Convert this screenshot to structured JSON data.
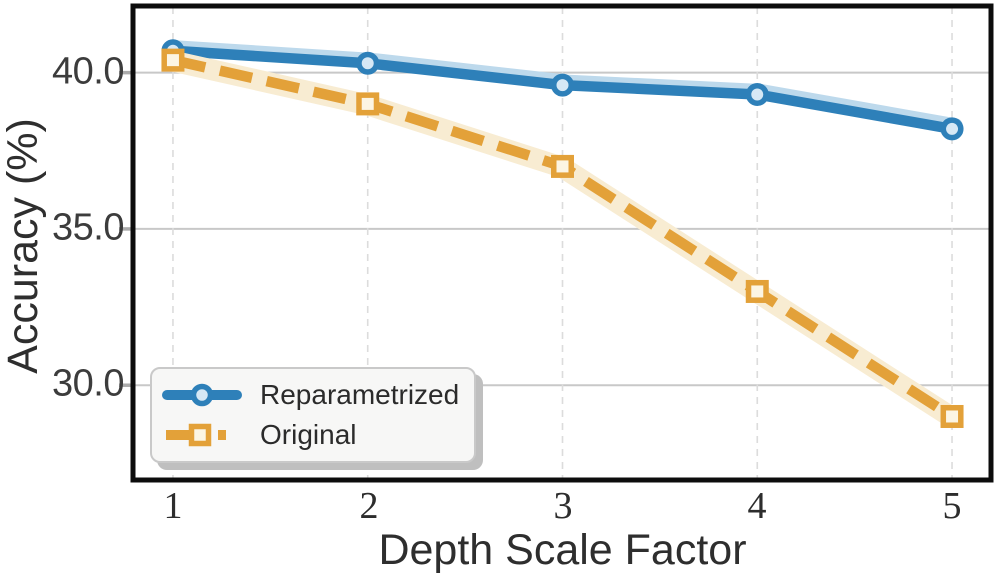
{
  "chart_data": {
    "type": "line",
    "xlabel": "Depth Scale Factor",
    "ylabel": "Accuracy (%)",
    "x": [
      1,
      2,
      3,
      4,
      5
    ],
    "series": [
      {
        "name": "Reparametrized",
        "values": [
          40.7,
          40.3,
          39.6,
          39.3,
          38.2
        ],
        "color": "#2e80b9",
        "glow_color": "#bdd9ec",
        "marker": "circle",
        "marker_fill": "#d6e8f5",
        "line_style": "solid"
      },
      {
        "name": "Original",
        "values": [
          40.4,
          39.0,
          37.0,
          33.0,
          29.0
        ],
        "color": "#e3a139",
        "glow_color": "#f8ecd2",
        "marker": "square",
        "marker_fill": "#fcf5e3",
        "line_style": "dashed"
      }
    ],
    "xtick_labels": [
      "1",
      "2",
      "3",
      "4",
      "5"
    ],
    "xtick_values": [
      1,
      2,
      3,
      4,
      5
    ],
    "ytick_labels": [
      "30.0",
      "35.0",
      "40.0"
    ],
    "ytick_values": [
      30,
      35,
      40
    ],
    "xlim": [
      0.8,
      5.2
    ],
    "ylim": [
      27.0,
      42.1
    ],
    "grid": {
      "horizontal": "solid",
      "vertical": "dashed"
    },
    "legend": {
      "position": "lower left"
    },
    "colors": {
      "frame": "#0c0c0c",
      "grid_h": "#c8c8c8",
      "grid_v": "#dcdcdc",
      "tick": "#ababab",
      "background": "#ffffff"
    }
  }
}
